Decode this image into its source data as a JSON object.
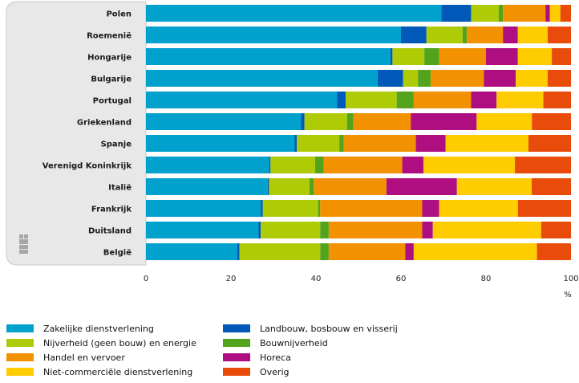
{
  "chart_data": {
    "type": "bar",
    "orientation": "horizontal",
    "stacked": true,
    "title": "",
    "xlabel": "",
    "ylabel": "",
    "unit": "%",
    "xlim": [
      0,
      100
    ],
    "xticks": [
      "0",
      "20",
      "40",
      "60",
      "80",
      "100"
    ],
    "categories": [
      "Polen",
      "Roemenië",
      "Hongarije",
      "Bulgarije",
      "Portugal",
      "Griekenland",
      "Spanje",
      "Verenigd Koninkrijk",
      "Italië",
      "Frankrijk",
      "Duitsland",
      "België"
    ],
    "series": [
      {
        "name": "Zakelijke dienstverlening",
        "color": "#00a1cd",
        "values": [
          69.5,
          60,
          57.5,
          54.5,
          45,
          36.5,
          35,
          29,
          28.5,
          27,
          26.5,
          21.5
        ]
      },
      {
        "name": "Landbouw, bosbouw en visserij",
        "color": "#0058b8",
        "values": [
          7,
          6,
          0.5,
          6,
          2,
          0.8,
          0.5,
          0.3,
          0.3,
          0.5,
          0.5,
          0.5
        ]
      },
      {
        "name": "Nijverheid (geen bouw) en energie",
        "color": "#afcb05",
        "values": [
          6.5,
          8.5,
          7.5,
          3.5,
          12,
          10,
          10,
          10.5,
          9.5,
          13,
          14,
          19
        ]
      },
      {
        "name": "Bouwnijverheid",
        "color": "#53a31d",
        "values": [
          1,
          1,
          3.5,
          3,
          4,
          1.5,
          1,
          2,
          1,
          0.5,
          2,
          2
        ]
      },
      {
        "name": "Handel en vervoer",
        "color": "#f39200",
        "values": [
          10,
          8.5,
          11,
          12.5,
          13.5,
          13.5,
          17,
          18.5,
          17,
          24,
          22,
          18
        ]
      },
      {
        "name": "Horeca",
        "color": "#af0e80",
        "values": [
          1,
          3.5,
          7.5,
          7.5,
          6,
          15.5,
          7,
          5,
          16.5,
          4,
          2.5,
          2
        ]
      },
      {
        "name": "Niet-commerciële dienstverlening",
        "color": "#ffcc00",
        "values": [
          2.5,
          7,
          8,
          7.5,
          11,
          13,
          19.5,
          21.5,
          17.5,
          18.5,
          25.5,
          29
        ]
      },
      {
        "name": "Overig",
        "color": "#e94c0a",
        "values": [
          2.5,
          5.5,
          4.5,
          5.5,
          6.5,
          9.2,
          10,
          13.2,
          9.2,
          12.5,
          7,
          8
        ]
      }
    ],
    "legend_position": "bottom",
    "grid": false
  }
}
